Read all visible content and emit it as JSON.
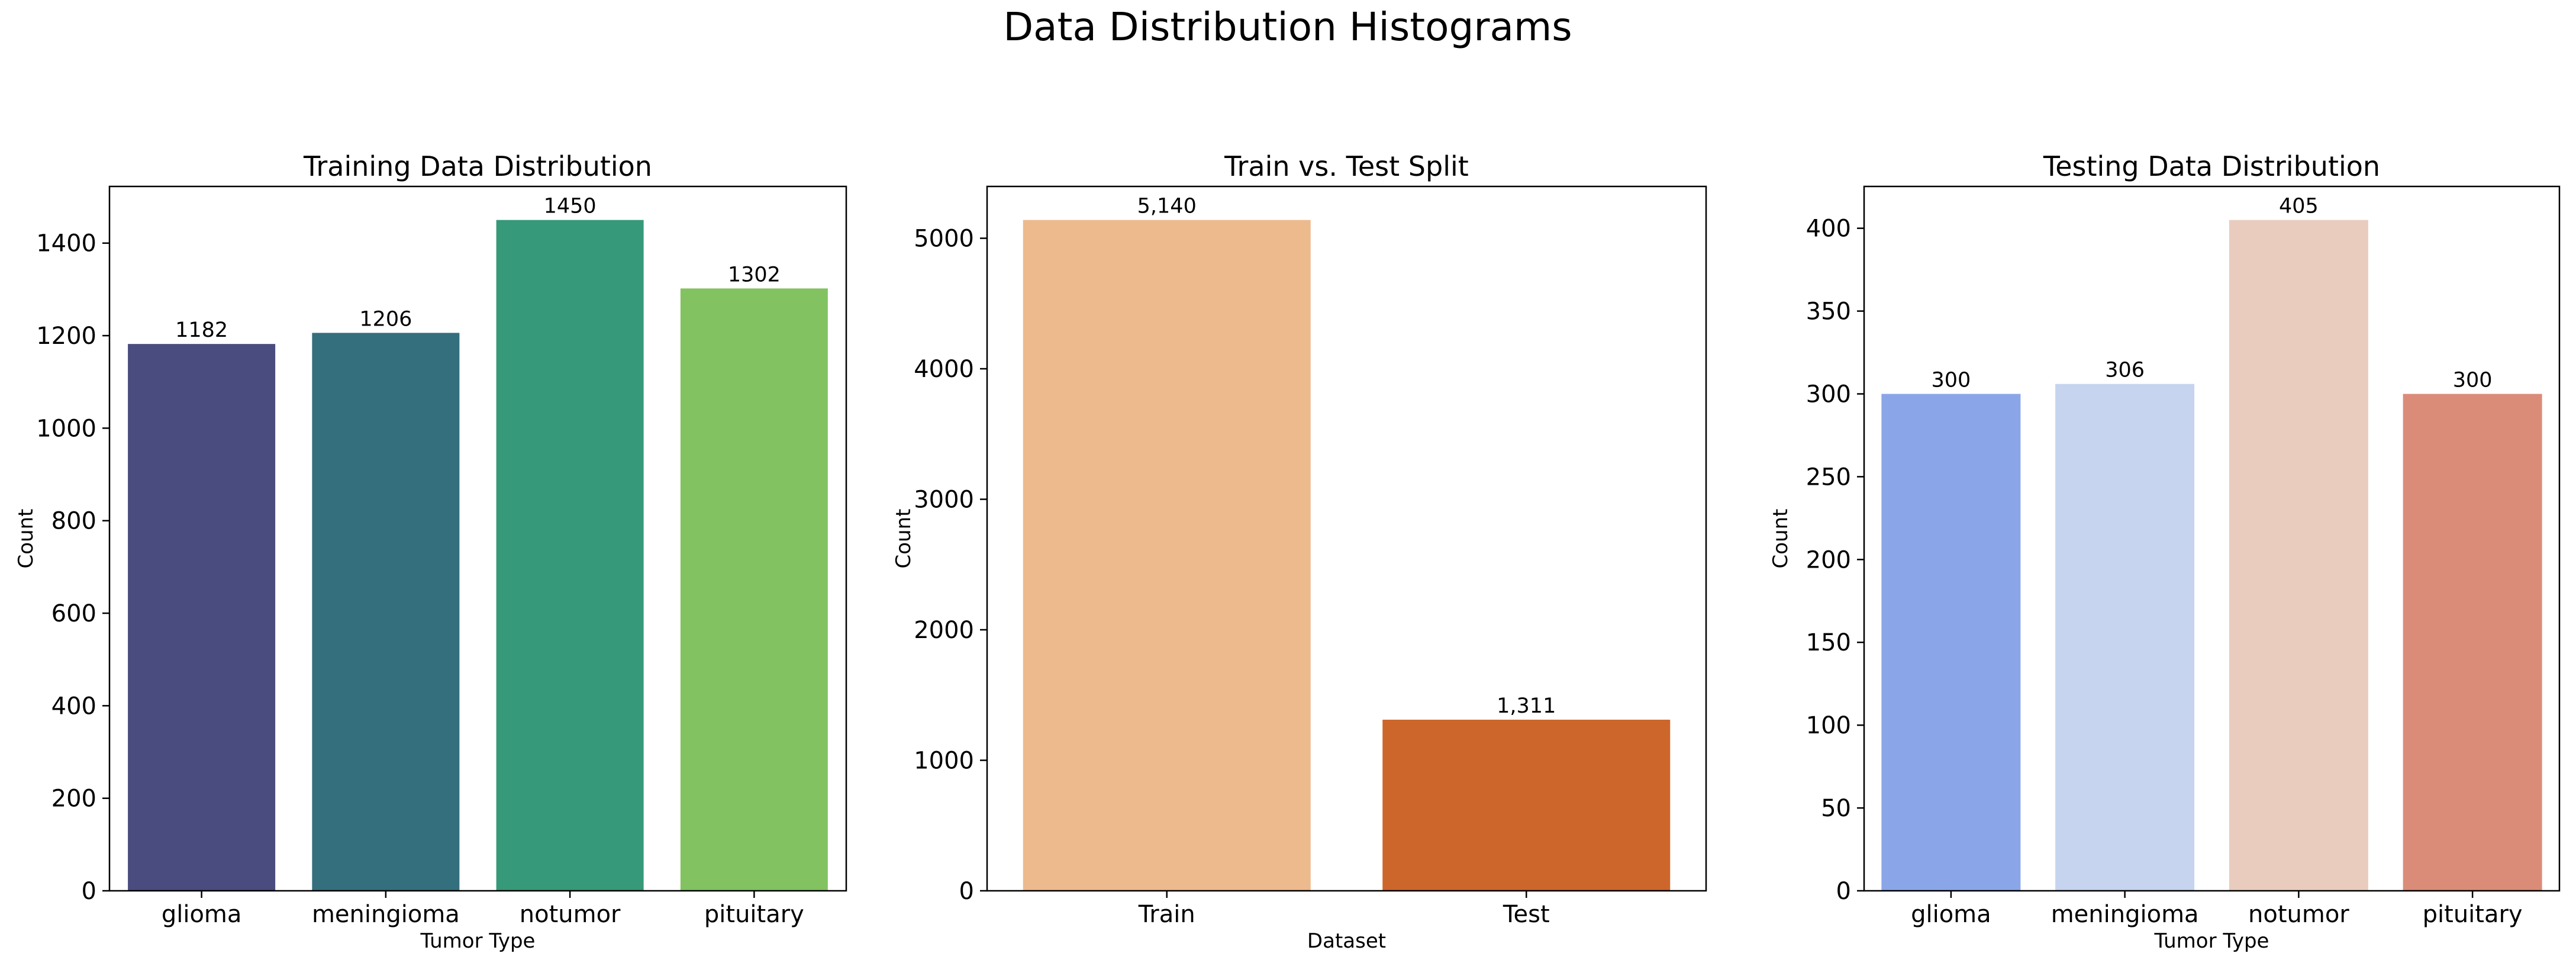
{
  "figure": {
    "title": "Data Distribution Histograms"
  },
  "chart_data": [
    {
      "type": "bar",
      "title": "Training Data Distribution",
      "xlabel": "Tumor Type",
      "ylabel": "Count",
      "categories": [
        "glioma",
        "meningioma",
        "notumor",
        "pituitary"
      ],
      "values": [
        1182,
        1206,
        1450,
        1302
      ],
      "value_labels": [
        "1182",
        "1206",
        "1450",
        "1302"
      ],
      "colors": [
        "#4a4b7e",
        "#346f7e",
        "#369979",
        "#82c261"
      ],
      "ylim": [
        0,
        1522.5
      ],
      "yticks": [
        0,
        200,
        400,
        600,
        800,
        1000,
        1200,
        1400
      ],
      "ytick_labels": [
        "0",
        "200",
        "400",
        "600",
        "800",
        "1000",
        "1200",
        "1400"
      ],
      "grid": false,
      "legend": "none"
    },
    {
      "type": "bar",
      "title": "Train vs. Test Split",
      "xlabel": "Dataset",
      "ylabel": "Count",
      "categories": [
        "Train",
        "Test"
      ],
      "values": [
        5140,
        1311
      ],
      "value_labels": [
        "5,140",
        "1,311"
      ],
      "colors": [
        "#edba8d",
        "#cd662a"
      ],
      "ylim": [
        0,
        5397
      ],
      "yticks": [
        0,
        1000,
        2000,
        3000,
        4000,
        5000
      ],
      "ytick_labels": [
        "0",
        "1000",
        "2000",
        "3000",
        "4000",
        "5000"
      ],
      "grid": false,
      "legend": "none"
    },
    {
      "type": "bar",
      "title": "Testing Data Distribution",
      "xlabel": "Tumor Type",
      "ylabel": "Count",
      "categories": [
        "glioma",
        "meningioma",
        "notumor",
        "pituitary"
      ],
      "values": [
        300,
        306,
        405,
        300
      ],
      "value_labels": [
        "300",
        "306",
        "405",
        "300"
      ],
      "colors": [
        "#8aa6e8",
        "#c6d4ef",
        "#eaccbf",
        "#db8c78"
      ],
      "ylim": [
        0,
        425.25
      ],
      "yticks": [
        0,
        50,
        100,
        150,
        200,
        250,
        300,
        350,
        400
      ],
      "ytick_labels": [
        "0",
        "50",
        "100",
        "150",
        "200",
        "250",
        "300",
        "350",
        "400"
      ],
      "grid": false,
      "legend": "none"
    }
  ]
}
